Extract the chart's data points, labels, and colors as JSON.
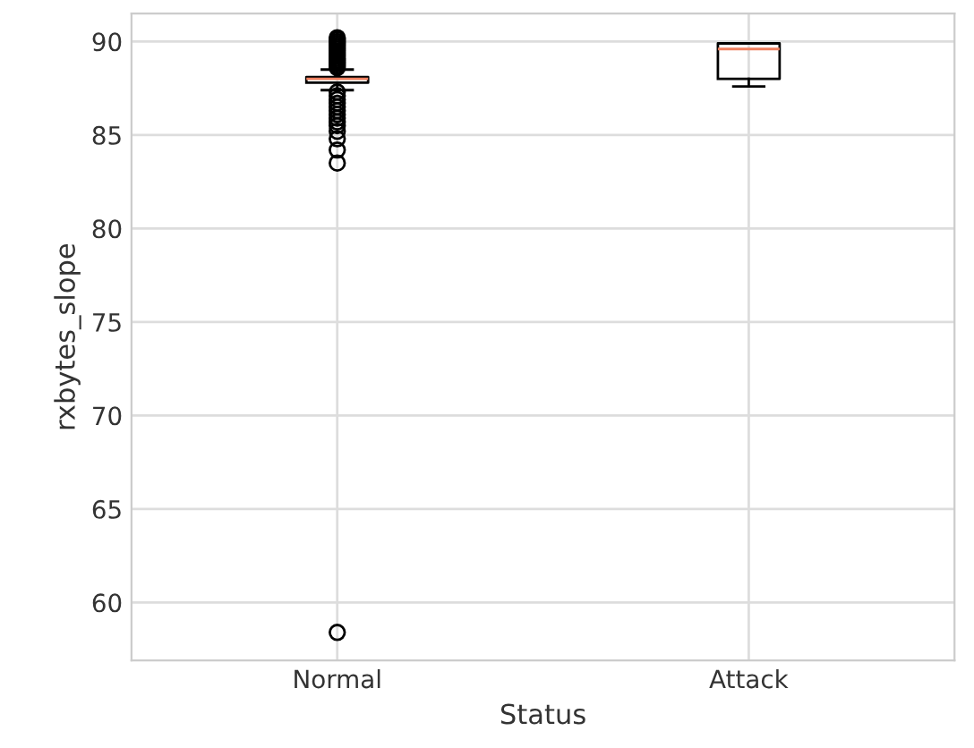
{
  "chart_data": {
    "type": "box",
    "xlabel": "Status",
    "ylabel": "rxbytes_slope",
    "categories": [
      "Normal",
      "Attack"
    ],
    "boxes": [
      {
        "low": 87.4,
        "q1": 87.8,
        "median": 88.0,
        "q3": 88.1,
        "high": 88.5,
        "outliers": [
          88.6,
          88.7,
          88.8,
          88.9,
          89.0,
          89.1,
          89.2,
          89.3,
          89.4,
          89.5,
          89.6,
          89.7,
          89.8,
          89.9,
          90.0,
          90.1,
          90.2,
          87.3,
          87.1,
          86.9,
          86.7,
          86.5,
          86.3,
          86.1,
          85.9,
          85.7,
          85.5,
          85.2,
          84.8,
          84.2,
          83.5,
          58.4
        ]
      },
      {
        "low": 87.6,
        "q1": 88.0,
        "median": 89.6,
        "q3": 89.9,
        "high": 89.9
      }
    ],
    "color": "#000000",
    "ylim": [
      56.9,
      91.5
    ],
    "yticks": [
      60,
      65,
      70,
      75,
      80,
      85,
      90
    ],
    "grid": true
  }
}
